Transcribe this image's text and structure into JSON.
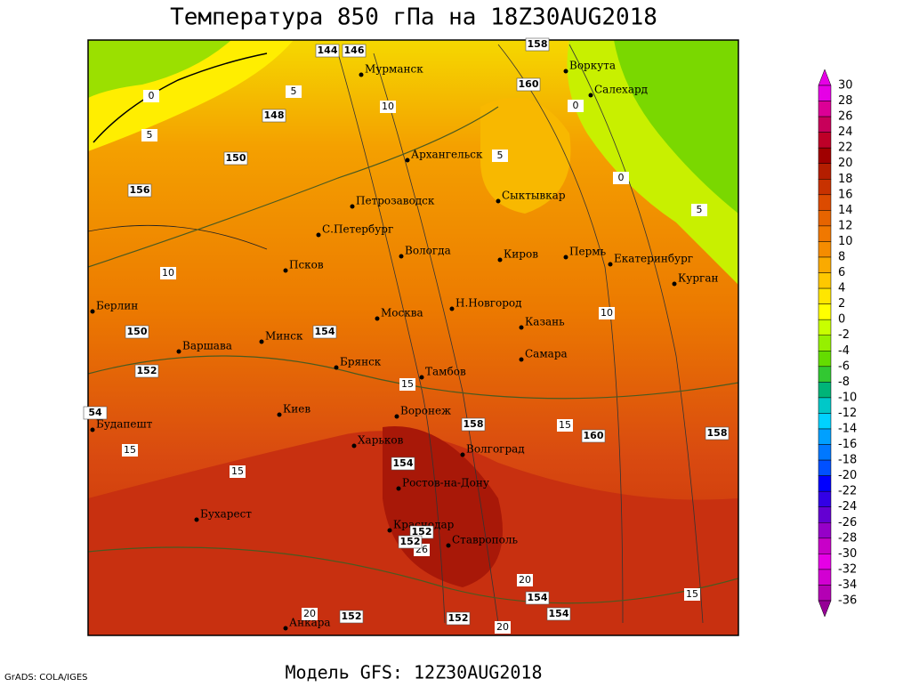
{
  "title": "Температура 850 гПа на 18Z30AUG2018",
  "model": "Модель GFS: 12Z30AUG2018",
  "credit": "GrADS: COLA/IGES",
  "cities": [
    "Мурманск",
    "Воркута",
    "Салехард",
    "Архангельск",
    "Петрозаводск",
    "Сыктывкар",
    "С.Петербург",
    "Вологда",
    "Киров",
    "Пермь",
    "Екатеринбург",
    "Курган",
    "Псков",
    "Берлин",
    "Москва",
    "Н.Новгород",
    "Казань",
    "Минск",
    "Варшава",
    "Самара",
    "Брянск",
    "Тамбов",
    "Киев",
    "Воронеж",
    "Будапешт",
    "Харьков",
    "Волгоград",
    "Ростов-на-Дону",
    "Бухарест",
    "Краснодар",
    "Ставрополь",
    "Анкара"
  ],
  "isotherm_labels": [
    0,
    5,
    5,
    10,
    5,
    0,
    0,
    5,
    10,
    10,
    15,
    15,
    15,
    15,
    26,
    20,
    15,
    20,
    20
  ],
  "height_labels": [
    144,
    146,
    158,
    160,
    148,
    150,
    156,
    150,
    154,
    152,
    54,
    158,
    160,
    158,
    154,
    152,
    152,
    154,
    154,
    152,
    152
  ],
  "colorbar": {
    "levels": [
      30,
      28,
      26,
      24,
      22,
      20,
      18,
      16,
      14,
      12,
      10,
      8,
      6,
      4,
      2,
      0,
      -2,
      -4,
      -6,
      -8,
      -10,
      -12,
      -14,
      -16,
      -18,
      -20,
      -22,
      -24,
      -26,
      -28,
      -30,
      -32,
      -34,
      -36
    ],
    "colors": [
      "#e600e6",
      "#dc0096",
      "#c8005a",
      "#be0028",
      "#a00000",
      "#b41e00",
      "#c83200",
      "#dc4b00",
      "#e66400",
      "#f07800",
      "#f58c00",
      "#faaa00",
      "#ffc800",
      "#ffe600",
      "#ffff00",
      "#c8ff00",
      "#96f000",
      "#64dc00",
      "#32c832",
      "#00b478",
      "#00c8c8",
      "#00d2ff",
      "#00a0ff",
      "#0078ff",
      "#0050ff",
      "#0000ff",
      "#3200e6",
      "#6400d2",
      "#9600c8",
      "#c800c8",
      "#e600e6",
      "#d200d2",
      "#b400b4",
      "#960096"
    ]
  }
}
